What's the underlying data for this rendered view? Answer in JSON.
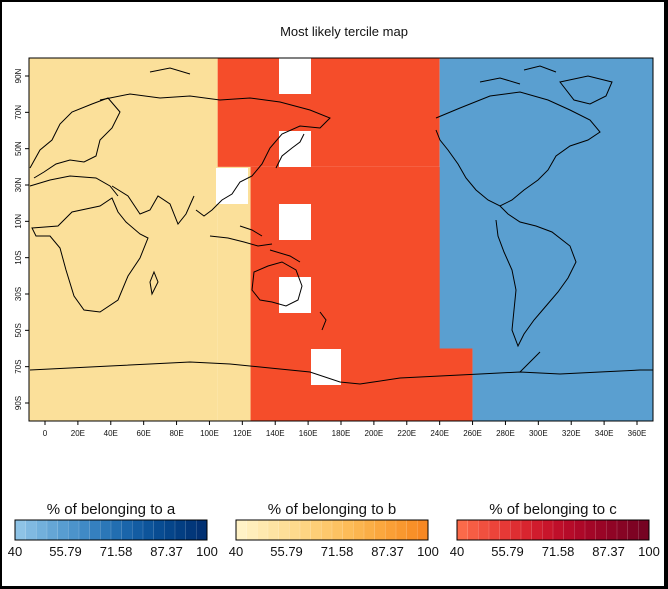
{
  "map": {
    "title": "Most likely tercile map",
    "lon_ticks": [
      "0",
      "20E",
      "40E",
      "60E",
      "80E",
      "100E",
      "120E",
      "140E",
      "160E",
      "180E",
      "200E",
      "220E",
      "240E",
      "260E",
      "280E",
      "300E",
      "320E",
      "340E",
      "360E"
    ],
    "lat_ticks": [
      "90N",
      "70N",
      "50N",
      "30N",
      "10N",
      "10S",
      "30S",
      "50S",
      "70S",
      "90S"
    ],
    "regions": [
      {
        "category": "b",
        "lon": [
          0,
          105
        ],
        "lat": [
          -90,
          90
        ]
      },
      {
        "category": "b",
        "lon": [
          105,
          125
        ],
        "lat": [
          -90,
          40
        ]
      },
      {
        "category": "c",
        "lon": [
          105,
          240
        ],
        "lat": [
          40,
          90
        ]
      },
      {
        "category": "c",
        "lon": [
          125,
          260
        ],
        "lat": [
          -90,
          40
        ]
      },
      {
        "category": "a",
        "lon": [
          240,
          360
        ],
        "lat": [
          -60,
          90
        ]
      },
      {
        "category": "a",
        "lon": [
          260,
          360
        ],
        "lat": [
          -90,
          -60
        ]
      }
    ],
    "colors": {
      "a_mid": "#5a9fd0",
      "b_mid": "#fbe09a",
      "c_mid": "#f54d2a",
      "outline": "#000000"
    }
  },
  "legend": [
    {
      "key": "a",
      "title": "% of belonging to a",
      "ticks": [
        "40",
        "55.79",
        "71.58",
        "87.37",
        "100"
      ],
      "colors": [
        "#8ec3e6",
        "#80b9e1",
        "#72b0dc",
        "#65a6d6",
        "#589dd1",
        "#4c93cb",
        "#408ac6",
        "#3580bf",
        "#2b77b8",
        "#226eb1",
        "#1a65aa",
        "#135ca2",
        "#0d549a",
        "#084c92",
        "#05458a",
        "#033e82",
        "#02377a",
        "#023173"
      ]
    },
    {
      "key": "b",
      "title": "% of belonging to b",
      "ticks": [
        "40",
        "55.79",
        "71.58",
        "87.37",
        "100"
      ],
      "colors": [
        "#fff2c6",
        "#ffeebb",
        "#ffe9af",
        "#fee4a3",
        "#fedf98",
        "#feda8d",
        "#fed482",
        "#fece77",
        "#fec86c",
        "#fdc262",
        "#fdbc58",
        "#fcb54f",
        "#fbae46",
        "#fba73e",
        "#fa9f36",
        "#f9982f",
        "#f89028",
        "#f78822"
      ]
    },
    {
      "key": "c",
      "title": "% of belonging to c",
      "ticks": [
        "40",
        "55.79",
        "71.58",
        "87.37",
        "100"
      ],
      "colors": [
        "#fb6a4a",
        "#f65d44",
        "#f1503f",
        "#ec443a",
        "#e63936",
        "#df2e32",
        "#d8252f",
        "#d01c2d",
        "#c8152b",
        "#bf0f2a",
        "#b60b29",
        "#ad0828",
        "#a30627",
        "#9a0526",
        "#900425",
        "#870424",
        "#7e0323",
        "#760322"
      ]
    }
  ]
}
